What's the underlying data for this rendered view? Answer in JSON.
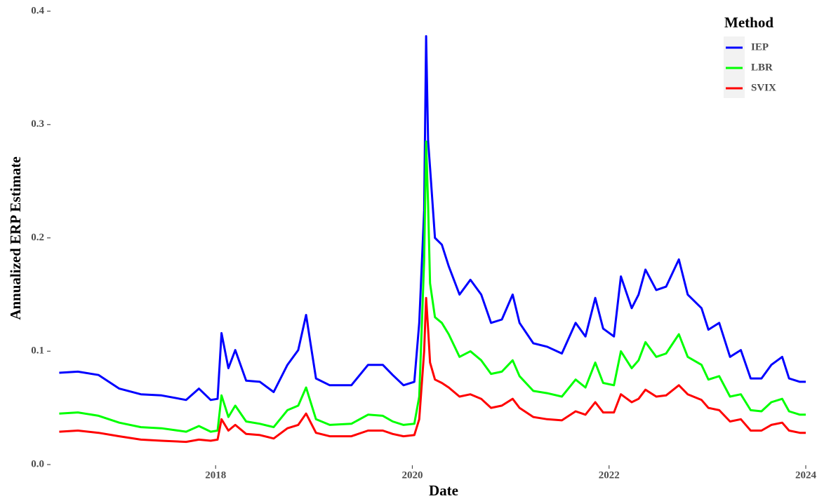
{
  "chart_data": {
    "type": "line",
    "xlabel": "Date",
    "ylabel": "Annualized ERP Estimate",
    "legend_title": "Method",
    "legend_position": "top-right",
    "grid": false,
    "x": [
      2016.41,
      2016.6,
      2016.81,
      2017.02,
      2017.24,
      2017.45,
      2017.7,
      2017.83,
      2017.95,
      2018.02,
      2018.06,
      2018.13,
      2018.2,
      2018.31,
      2018.45,
      2018.59,
      2018.73,
      2018.84,
      2018.92,
      2019.02,
      2019.16,
      2019.38,
      2019.55,
      2019.7,
      2019.8,
      2019.91,
      2020.02,
      2020.07,
      2020.12,
      2020.14,
      2020.16,
      2020.18,
      2020.23,
      2020.3,
      2020.37,
      2020.48,
      2020.59,
      2020.7,
      2020.8,
      2020.91,
      2021.02,
      2021.09,
      2021.23,
      2021.37,
      2021.52,
      2021.66,
      2021.76,
      2021.86,
      2021.94,
      2022.05,
      2022.12,
      2022.23,
      2022.3,
      2022.37,
      2022.48,
      2022.58,
      2022.71,
      2022.8,
      2022.94,
      2023.01,
      2023.12,
      2023.23,
      2023.34,
      2023.44,
      2023.55,
      2023.65,
      2023.76,
      2023.83,
      2023.94,
      2024.0
    ],
    "series": [
      {
        "name": "IEP",
        "color": "#0000ff",
        "values": [
          0.081,
          0.082,
          0.079,
          0.067,
          0.062,
          0.061,
          0.057,
          0.067,
          0.057,
          0.058,
          0.116,
          0.085,
          0.101,
          0.074,
          0.073,
          0.064,
          0.088,
          0.101,
          0.132,
          0.076,
          0.07,
          0.07,
          0.088,
          0.088,
          0.079,
          0.07,
          0.073,
          0.125,
          0.224,
          0.378,
          0.286,
          0.262,
          0.2,
          0.194,
          0.175,
          0.15,
          0.163,
          0.15,
          0.125,
          0.128,
          0.15,
          0.125,
          0.107,
          0.104,
          0.098,
          0.125,
          0.113,
          0.147,
          0.12,
          0.113,
          0.166,
          0.138,
          0.15,
          0.172,
          0.154,
          0.157,
          0.181,
          0.15,
          0.138,
          0.119,
          0.125,
          0.095,
          0.101,
          0.076,
          0.076,
          0.088,
          0.095,
          0.076,
          0.073,
          0.073
        ]
      },
      {
        "name": "LBR",
        "color": "#00ff00",
        "values": [
          0.045,
          0.046,
          0.043,
          0.037,
          0.033,
          0.032,
          0.029,
          0.034,
          0.029,
          0.03,
          0.061,
          0.042,
          0.052,
          0.038,
          0.036,
          0.033,
          0.048,
          0.052,
          0.068,
          0.04,
          0.035,
          0.036,
          0.044,
          0.043,
          0.038,
          0.035,
          0.036,
          0.06,
          0.18,
          0.285,
          0.23,
          0.16,
          0.13,
          0.125,
          0.115,
          0.095,
          0.1,
          0.092,
          0.08,
          0.082,
          0.092,
          0.078,
          0.065,
          0.063,
          0.06,
          0.075,
          0.068,
          0.09,
          0.072,
          0.07,
          0.1,
          0.085,
          0.092,
          0.108,
          0.095,
          0.098,
          0.115,
          0.095,
          0.088,
          0.075,
          0.078,
          0.06,
          0.062,
          0.048,
          0.047,
          0.055,
          0.058,
          0.047,
          0.044,
          0.044
        ]
      },
      {
        "name": "SVIX",
        "color": "#ff0000",
        "values": [
          0.029,
          0.03,
          0.028,
          0.025,
          0.022,
          0.021,
          0.02,
          0.022,
          0.021,
          0.022,
          0.04,
          0.03,
          0.035,
          0.027,
          0.026,
          0.023,
          0.032,
          0.035,
          0.045,
          0.028,
          0.025,
          0.025,
          0.03,
          0.03,
          0.027,
          0.025,
          0.026,
          0.04,
          0.1,
          0.147,
          0.12,
          0.09,
          0.075,
          0.072,
          0.068,
          0.06,
          0.062,
          0.058,
          0.05,
          0.052,
          0.058,
          0.05,
          0.042,
          0.04,
          0.039,
          0.047,
          0.044,
          0.055,
          0.046,
          0.046,
          0.062,
          0.055,
          0.058,
          0.066,
          0.06,
          0.061,
          0.07,
          0.062,
          0.057,
          0.05,
          0.048,
          0.038,
          0.04,
          0.03,
          0.03,
          0.035,
          0.037,
          0.03,
          0.028,
          0.028
        ]
      }
    ],
    "xlim": [
      2016.3,
      2024.05
    ],
    "xticks": [
      2018,
      2020,
      2022,
      2024
    ],
    "ylim": [
      0,
      0.4
    ],
    "yticks": [
      {
        "value": 0,
        "label": "0.0"
      },
      0.1,
      0.2,
      0.3,
      0.4
    ]
  }
}
